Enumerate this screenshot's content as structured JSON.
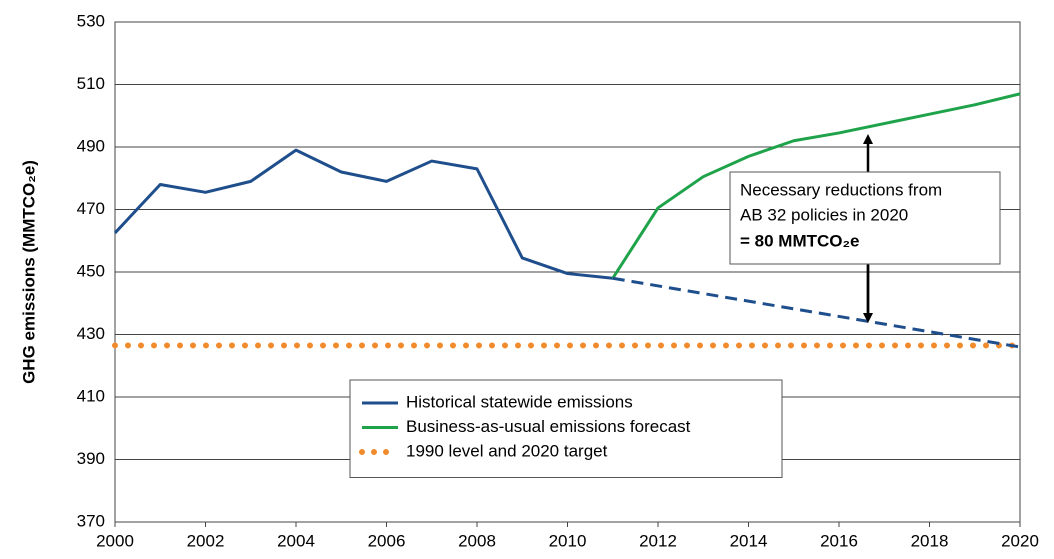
{
  "chart_data": {
    "type": "line",
    "ylabel": "GHG emissions (MMTCO₂e)",
    "xlim": [
      2000,
      2020
    ],
    "xticks": [
      2000,
      2002,
      2004,
      2006,
      2008,
      2010,
      2012,
      2014,
      2016,
      2018,
      2020
    ],
    "ylim": [
      370,
      530
    ],
    "yticks": [
      370,
      390,
      410,
      430,
      450,
      470,
      490,
      510,
      530
    ],
    "grid": true,
    "legend": "bottom-center",
    "annotation": [
      "Necessary reductions from",
      "AB 32 policies in 2020",
      "= 80 MMTCO₂e"
    ],
    "series": [
      {
        "name": "Historical statewide emissions",
        "color": "#1f4e8c",
        "dash": "solid",
        "x": [
          2000,
          2001,
          2002,
          2003,
          2004,
          2005,
          2006,
          2007,
          2008,
          2009,
          2010,
          2011
        ],
        "values": [
          462.5,
          478,
          475.5,
          479,
          489,
          482,
          479,
          485.5,
          483,
          454.5,
          449.5,
          448
        ]
      },
      {
        "name": "Business-as-usual emissions forecast",
        "color": "#1fa34a",
        "dash": "solid",
        "x": [
          2011,
          2012,
          2013,
          2014,
          2015,
          2016,
          2017,
          2018,
          2019,
          2020
        ],
        "values": [
          448,
          470.5,
          480.5,
          487,
          492,
          494.5,
          497.5,
          500.5,
          503.5,
          507
        ]
      },
      {
        "name": "1990 level and 2020 target",
        "color": "#f08a2a",
        "dash": "dotted",
        "x": [
          2000,
          2020
        ],
        "values": [
          426.5,
          426.5
        ]
      },
      {
        "color": "#1f4e8c",
        "dash": "dashed",
        "x": [
          2011,
          2020
        ],
        "values": [
          448,
          426
        ]
      }
    ]
  }
}
